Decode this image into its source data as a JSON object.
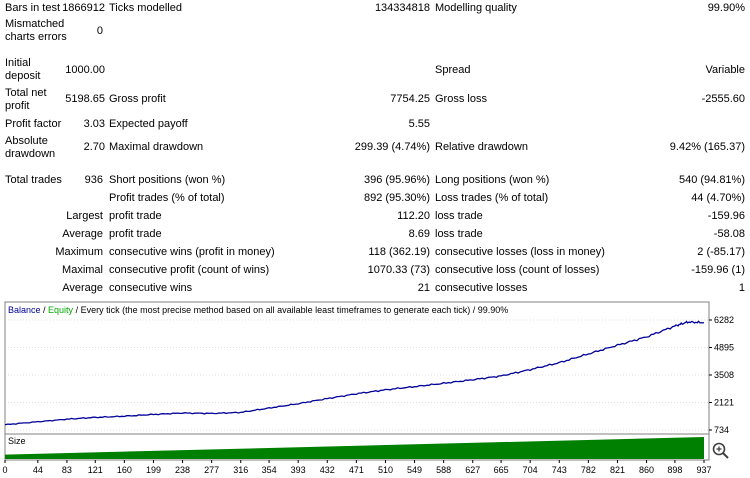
{
  "report": {
    "bars_in_test_label": "Bars in test",
    "bars_in_test": "1866912",
    "ticks_modelled_label": "Ticks modelled",
    "ticks_modelled": "134334818",
    "modelling_quality_label": "Modelling quality",
    "modelling_quality": "99.90%",
    "mismatched_label_1": "Mismatched",
    "mismatched_label_2": "charts errors",
    "mismatched": "0",
    "initial_deposit_label_1": "Initial",
    "initial_deposit_label_2": "deposit",
    "initial_deposit": "1000.00",
    "spread_label": "Spread",
    "spread": "Variable",
    "total_net_profit_label_1": "Total net",
    "total_net_profit_label_2": "profit",
    "total_net_profit": "5198.65",
    "gross_profit_label": "Gross profit",
    "gross_profit": "7754.25",
    "gross_loss_label": "Gross loss",
    "gross_loss": "-2555.60",
    "profit_factor_label": "Profit factor",
    "profit_factor": "3.03",
    "expected_payoff_label": "Expected payoff",
    "expected_payoff": "5.55",
    "absolute_drawdown_label_1": "Absolute",
    "absolute_drawdown_label_2": "drawdown",
    "absolute_drawdown": "2.70",
    "maximal_drawdown_label": "Maximal drawdown",
    "maximal_drawdown": "299.39 (4.74%)",
    "relative_drawdown_label": "Relative drawdown",
    "relative_drawdown": "9.42% (165.37)",
    "total_trades_label": "Total trades",
    "total_trades": "936",
    "short_positions_label": "Short positions (won %)",
    "short_positions": "396 (95.96%)",
    "long_positions_label": "Long positions (won %)",
    "long_positions": "540 (94.81%)",
    "profit_trades_label": "Profit trades (% of total)",
    "profit_trades": "892 (95.30%)",
    "loss_trades_label": "Loss trades (% of total)",
    "loss_trades": "44 (4.70%)",
    "largest_label": "Largest",
    "largest_profit_label": "profit trade",
    "largest_profit": "112.20",
    "largest_loss_label": "loss trade",
    "largest_loss": "-159.96",
    "average_label": "Average",
    "average_profit_label": "profit trade",
    "average_profit": "8.69",
    "average_loss_label": "loss trade",
    "average_loss": "-58.08",
    "maximum_label": "Maximum",
    "max_cons_wins_label": "consecutive wins (profit in money)",
    "max_cons_wins": "118 (362.19)",
    "max_cons_losses_label": "consecutive losses (loss in money)",
    "max_cons_losses": "2 (-85.17)",
    "maximal_label": "Maximal",
    "maximal_cons_profit_label": "consecutive profit (count of wins)",
    "maximal_cons_profit": "1070.33 (73)",
    "maximal_cons_loss_label": "consecutive loss (count of losses)",
    "maximal_cons_loss": "-159.96 (1)",
    "average2_label": "Average",
    "avg_cons_wins_label": "consecutive wins",
    "avg_cons_wins": "21",
    "avg_cons_losses_label": "consecutive losses",
    "avg_cons_losses": "1"
  },
  "chart": {
    "legend_balance": "Balance",
    "legend_sep": " / ",
    "legend_equity": "Equity",
    "legend_rest": " / Every tick (the most precise method based on all available least timeframes to generate each tick) / 99.90%",
    "size_label": "Size",
    "colors": {
      "balance": "#000099",
      "equity": "#00aa00",
      "size_fill": "#008000",
      "grid": "#c0c0c0"
    }
  },
  "chart_data": {
    "type": "line",
    "title": "Balance / Equity / Every tick (the most precise method based on all available least timeframes to generate each tick) / 99.90%",
    "xlabel": "",
    "ylabel": "",
    "y_ticks": [
      "6282",
      "4895",
      "3508",
      "2121",
      "734"
    ],
    "ylim": [
      734,
      6282
    ],
    "x_ticks": [
      "0",
      "44",
      "83",
      "121",
      "160",
      "199",
      "238",
      "277",
      "316",
      "354",
      "393",
      "432",
      "471",
      "510",
      "549",
      "588",
      "627",
      "665",
      "704",
      "743",
      "782",
      "821",
      "860",
      "898",
      "937"
    ],
    "xlim": [
      0,
      937
    ],
    "series": [
      {
        "name": "Balance",
        "x": [
          0,
          44,
          83,
          121,
          160,
          199,
          238,
          277,
          316,
          354,
          393,
          432,
          471,
          510,
          549,
          588,
          627,
          665,
          704,
          743,
          782,
          821,
          860,
          898,
          915,
          937
        ],
        "values": [
          1000,
          1150,
          1280,
          1370,
          1430,
          1520,
          1590,
          1570,
          1620,
          1840,
          2060,
          2320,
          2560,
          2760,
          2920,
          3090,
          3270,
          3460,
          3780,
          4130,
          4570,
          5010,
          5430,
          5980,
          6180,
          6150
        ]
      }
    ],
    "size": {
      "name": "Size",
      "x": [
        0,
        354,
        937
      ],
      "values": [
        0.03,
        0.03,
        0.03
      ],
      "description_values_relative_fill": [
        0.2,
        0.5,
        1.0
      ]
    }
  }
}
